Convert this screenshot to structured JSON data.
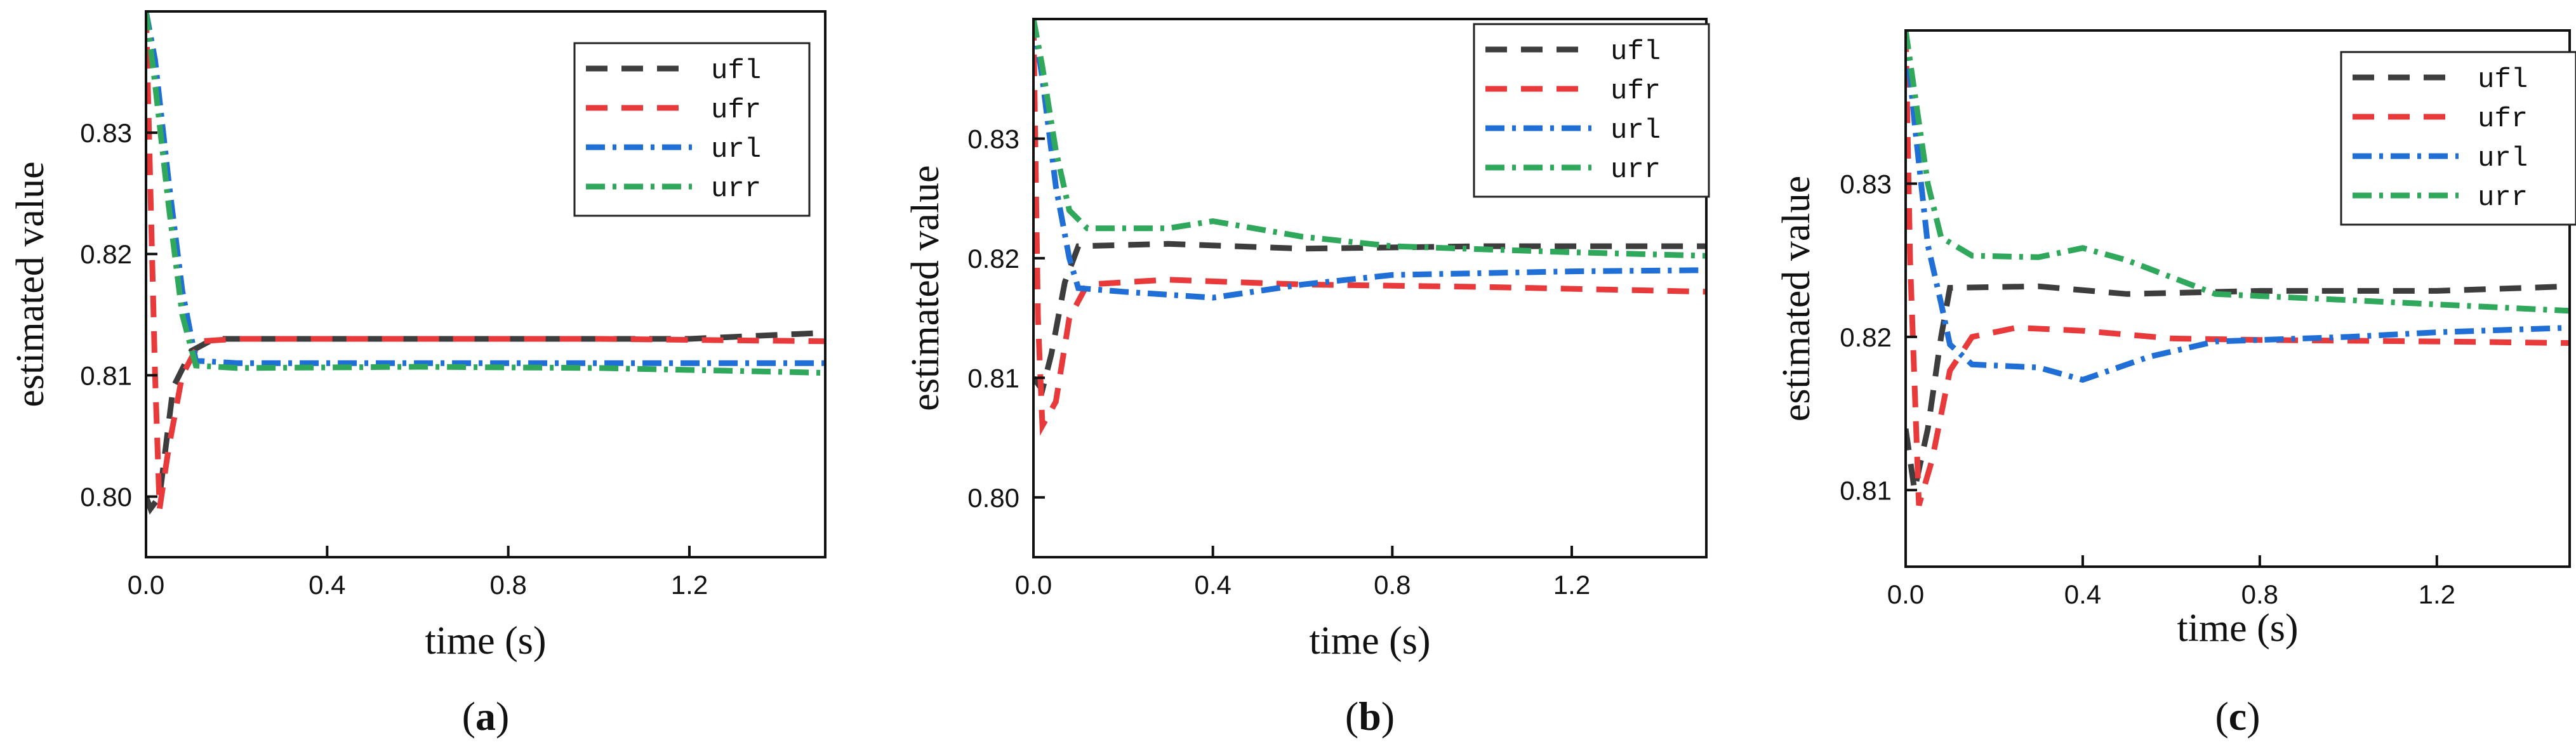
{
  "chart_data": [
    {
      "type": "line",
      "panel_label": "(a)",
      "xlabel": "time (s)",
      "ylabel": "estimated value",
      "xlim": [
        0,
        1.5
      ],
      "ylim": [
        0.795,
        0.84
      ],
      "xticks": [
        "0.0",
        "0.4",
        "0.8",
        "1.2"
      ],
      "xtick_values": [
        0,
        0.4,
        0.8,
        1.2
      ],
      "yticks": [
        "0.80",
        "0.81",
        "0.82",
        "0.83"
      ],
      "ytick_values": [
        0.8,
        0.81,
        0.82,
        0.83
      ],
      "grid": false,
      "legend_position": "top-right",
      "series": [
        {
          "name": "ufl",
          "color": "#3d3d3d",
          "dash": "dash",
          "points": [
            [
              0,
              0.8
            ],
            [
              0.01,
              0.799
            ],
            [
              0.03,
              0.8
            ],
            [
              0.06,
              0.809
            ],
            [
              0.1,
              0.812
            ],
            [
              0.15,
              0.813
            ],
            [
              0.4,
              0.813
            ],
            [
              0.8,
              0.813
            ],
            [
              1.2,
              0.813
            ],
            [
              1.5,
              0.8135
            ]
          ]
        },
        {
          "name": "ufr",
          "color": "#e8393b",
          "dash": "dash",
          "points": [
            [
              0,
              0.84
            ],
            [
              0.01,
              0.825
            ],
            [
              0.02,
              0.81
            ],
            [
              0.03,
              0.799
            ],
            [
              0.05,
              0.804
            ],
            [
              0.08,
              0.81
            ],
            [
              0.12,
              0.8128
            ],
            [
              0.2,
              0.813
            ],
            [
              0.6,
              0.813
            ],
            [
              1.0,
              0.813
            ],
            [
              1.5,
              0.8128
            ]
          ]
        },
        {
          "name": "url",
          "color": "#1f6fd6",
          "dash": "dashdot",
          "points": [
            [
              0,
              0.84
            ],
            [
              0.02,
              0.836
            ],
            [
              0.05,
              0.826
            ],
            [
              0.08,
              0.817
            ],
            [
              0.11,
              0.8112
            ],
            [
              0.2,
              0.811
            ],
            [
              0.6,
              0.811
            ],
            [
              1.0,
              0.811
            ],
            [
              1.5,
              0.811
            ]
          ]
        },
        {
          "name": "urr",
          "color": "#2fa85c",
          "dash": "dashdot",
          "points": [
            [
              0,
              0.84
            ],
            [
              0.02,
              0.834
            ],
            [
              0.05,
              0.824
            ],
            [
              0.08,
              0.815
            ],
            [
              0.11,
              0.8108
            ],
            [
              0.2,
              0.8106
            ],
            [
              0.6,
              0.8107
            ],
            [
              1.0,
              0.8106
            ],
            [
              1.5,
              0.8102
            ]
          ]
        }
      ]
    },
    {
      "type": "line",
      "panel_label": "(b)",
      "xlabel": "time (s)",
      "ylabel": "estimated value",
      "xlim": [
        0,
        1.5
      ],
      "ylim": [
        0.795,
        0.84
      ],
      "xticks": [
        "0.0",
        "0.4",
        "0.8",
        "1.2"
      ],
      "xtick_values": [
        0,
        0.4,
        0.8,
        1.2
      ],
      "yticks": [
        "0.80",
        "0.81",
        "0.82",
        "0.83"
      ],
      "ytick_values": [
        0.8,
        0.81,
        0.82,
        0.83
      ],
      "grid": false,
      "legend_position": "top-right",
      "series": [
        {
          "name": "ufl",
          "color": "#3d3d3d",
          "dash": "dash",
          "points": [
            [
              0,
              0.81
            ],
            [
              0.02,
              0.809
            ],
            [
              0.04,
              0.812
            ],
            [
              0.07,
              0.818
            ],
            [
              0.1,
              0.821
            ],
            [
              0.3,
              0.8212
            ],
            [
              0.6,
              0.8208
            ],
            [
              1.0,
              0.821
            ],
            [
              1.5,
              0.821
            ]
          ]
        },
        {
          "name": "ufr",
          "color": "#e8393b",
          "dash": "dash",
          "points": [
            [
              0,
              0.84
            ],
            [
              0.01,
              0.815
            ],
            [
              0.02,
              0.806
            ],
            [
              0.05,
              0.808
            ],
            [
              0.08,
              0.815
            ],
            [
              0.12,
              0.8178
            ],
            [
              0.3,
              0.8182
            ],
            [
              0.6,
              0.8178
            ],
            [
              1.0,
              0.8176
            ],
            [
              1.5,
              0.8172
            ]
          ]
        },
        {
          "name": "url",
          "color": "#1f6fd6",
          "dash": "dashdot",
          "points": [
            [
              0,
              0.84
            ],
            [
              0.02,
              0.835
            ],
            [
              0.05,
              0.826
            ],
            [
              0.08,
              0.82
            ],
            [
              0.1,
              0.8175
            ],
            [
              0.2,
              0.8172
            ],
            [
              0.4,
              0.8167
            ],
            [
              0.6,
              0.8178
            ],
            [
              0.8,
              0.8186
            ],
            [
              1.2,
              0.8189
            ],
            [
              1.5,
              0.819
            ]
          ]
        },
        {
          "name": "urr",
          "color": "#2fa85c",
          "dash": "dashdot",
          "points": [
            [
              0,
              0.84
            ],
            [
              0.02,
              0.836
            ],
            [
              0.05,
              0.829
            ],
            [
              0.08,
              0.824
            ],
            [
              0.12,
              0.8225
            ],
            [
              0.3,
              0.8225
            ],
            [
              0.4,
              0.8231
            ],
            [
              0.6,
              0.8218
            ],
            [
              0.8,
              0.821
            ],
            [
              1.2,
              0.8205
            ],
            [
              1.5,
              0.8202
            ]
          ]
        }
      ]
    },
    {
      "type": "line",
      "panel_label": "(c)",
      "xlabel": "time (s)",
      "ylabel": "estimated value",
      "xlim": [
        0,
        1.5
      ],
      "ylim": [
        0.805,
        0.84
      ],
      "xticks": [
        "0.0",
        "0.4",
        "0.8",
        "1.2"
      ],
      "xtick_values": [
        0,
        0.4,
        0.8,
        1.2
      ],
      "yticks": [
        "0.81",
        "0.82",
        "0.83"
      ],
      "ytick_values": [
        0.81,
        0.82,
        0.83
      ],
      "grid": false,
      "legend_position": "top-right",
      "series": [
        {
          "name": "ufl",
          "color": "#3d3d3d",
          "dash": "dash",
          "points": [
            [
              0,
              0.814
            ],
            [
              0.02,
              0.81
            ],
            [
              0.05,
              0.814
            ],
            [
              0.08,
              0.82
            ],
            [
              0.1,
              0.8232
            ],
            [
              0.3,
              0.8233
            ],
            [
              0.5,
              0.8228
            ],
            [
              0.8,
              0.823
            ],
            [
              1.2,
              0.823
            ],
            [
              1.5,
              0.8233
            ]
          ]
        },
        {
          "name": "ufr",
          "color": "#e8393b",
          "dash": "dash",
          "points": [
            [
              0,
              0.84
            ],
            [
              0.01,
              0.825
            ],
            [
              0.03,
              0.809
            ],
            [
              0.06,
              0.812
            ],
            [
              0.1,
              0.8178
            ],
            [
              0.15,
              0.82
            ],
            [
              0.25,
              0.8206
            ],
            [
              0.4,
              0.8204
            ],
            [
              0.6,
              0.8199
            ],
            [
              0.8,
              0.8198
            ],
            [
              1.2,
              0.8197
            ],
            [
              1.5,
              0.8196
            ]
          ]
        },
        {
          "name": "url",
          "color": "#1f6fd6",
          "dash": "dashdot",
          "points": [
            [
              0,
              0.84
            ],
            [
              0.02,
              0.834
            ],
            [
              0.05,
              0.826
            ],
            [
              0.08,
              0.8222
            ],
            [
              0.1,
              0.8195
            ],
            [
              0.15,
              0.8182
            ],
            [
              0.3,
              0.818
            ],
            [
              0.4,
              0.8172
            ],
            [
              0.55,
              0.8187
            ],
            [
              0.7,
              0.8197
            ],
            [
              1.0,
              0.82
            ],
            [
              1.2,
              0.8203
            ],
            [
              1.5,
              0.8206
            ]
          ]
        },
        {
          "name": "urr",
          "color": "#2fa85c",
          "dash": "dashdot",
          "points": [
            [
              0,
              0.84
            ],
            [
              0.02,
              0.836
            ],
            [
              0.05,
              0.83
            ],
            [
              0.08,
              0.8265
            ],
            [
              0.15,
              0.8253
            ],
            [
              0.3,
              0.8252
            ],
            [
              0.4,
              0.8258
            ],
            [
              0.5,
              0.825
            ],
            [
              0.7,
              0.8228
            ],
            [
              1.0,
              0.8224
            ],
            [
              1.5,
              0.8217
            ]
          ]
        }
      ]
    }
  ]
}
